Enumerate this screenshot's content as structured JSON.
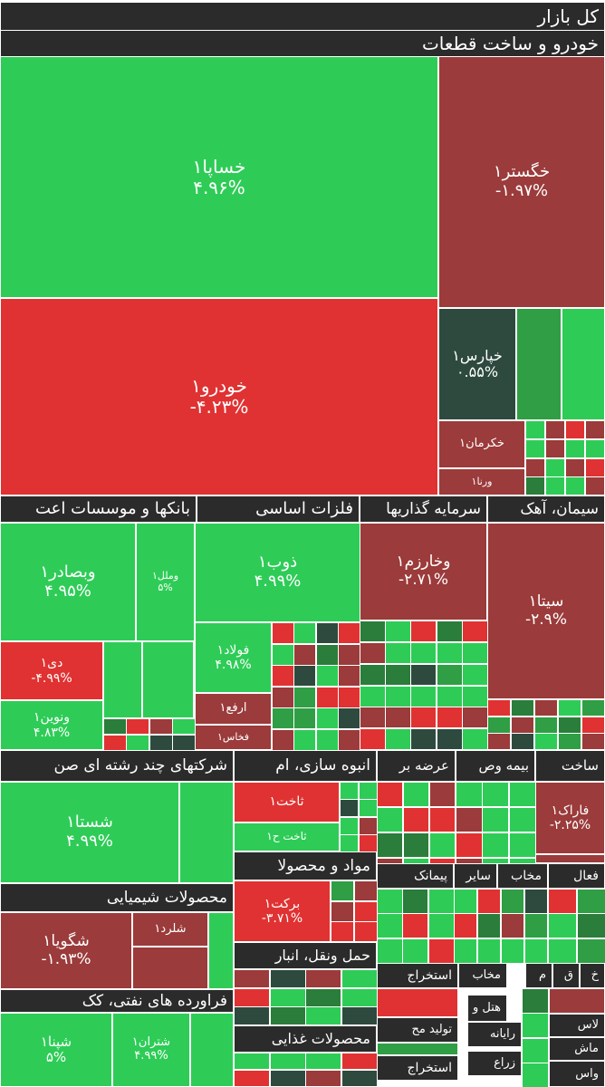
{
  "colors": {
    "up_strong": "#2ecc57",
    "up_mid": "#2f9e44",
    "up_dark": "#2a7d3a",
    "neutral": "#2e4a3f",
    "down_mid": "#9b3b3b",
    "down_strong": "#e03232",
    "header_bg": "#2b2b2b"
  },
  "chart_data": {
    "type": "treemap",
    "title": "کل بازار",
    "sectors": [
      {
        "name": "خودرو و ساخت قطعات",
        "stocks": [
          {
            "name": "خساپا۱",
            "change": "۴.۹۶%",
            "color": "up_strong"
          },
          {
            "name": "خگستر۱",
            "change": "-۱.۹۷%",
            "color": "down_mid"
          },
          {
            "name": "خودرو۱",
            "change": "-۴.۲۳%",
            "color": "down_strong"
          },
          {
            "name": "خپارس۱",
            "change": "۰.۵۵%",
            "color": "neutral"
          },
          {
            "name": "خکرمان۱",
            "change": "",
            "color": "down_mid"
          },
          {
            "name": "ورنا۱",
            "change": "",
            "color": "down_mid"
          }
        ]
      },
      {
        "name": "بانکها و موسسات اعت",
        "stocks": [
          {
            "name": "وبصادر۱",
            "change": "۴.۹۵%",
            "color": "up_strong"
          },
          {
            "name": "وملل۱",
            "change": "۵%",
            "color": "up_strong"
          },
          {
            "name": "دی۱",
            "change": "-۴.۹۹%",
            "color": "down_strong"
          },
          {
            "name": "ونوین۱",
            "change": "۴.۸۳%",
            "color": "up_strong"
          }
        ]
      },
      {
        "name": "فلزات اساسی",
        "stocks": [
          {
            "name": "ذوب۱",
            "change": "۴.۹۹%",
            "color": "up_strong"
          },
          {
            "name": "فولاد۱",
            "change": "۴.۹۸%",
            "color": "up_strong"
          },
          {
            "name": "ارفع۱",
            "change": "",
            "color": "down_mid"
          },
          {
            "name": "فخاس۱",
            "change": "",
            "color": "down_mid"
          }
        ]
      },
      {
        "name": "سرمایه گذاریها",
        "stocks": [
          {
            "name": "وخارزم۱",
            "change": "-۲.۷۱%",
            "color": "down_mid"
          }
        ]
      },
      {
        "name": "سیمان، آهک",
        "stocks": [
          {
            "name": "سیتا۱",
            "change": "-۲.۹%",
            "color": "down_mid"
          }
        ]
      },
      {
        "name": "شرکتهای چند رشته ای صن",
        "stocks": [
          {
            "name": "شستا۱",
            "change": "۴.۹۹%",
            "color": "up_strong"
          }
        ]
      },
      {
        "name": "انبوه سازی، ام",
        "stocks": [
          {
            "name": "ثاخت۱",
            "change": "",
            "color": "down_strong"
          },
          {
            "name": "ثاخت ح۱",
            "change": "",
            "color": "up_strong"
          }
        ]
      },
      {
        "name": "عرضه بر",
        "stocks": []
      },
      {
        "name": "بیمه وص",
        "stocks": []
      },
      {
        "name": "ساخت",
        "stocks": [
          {
            "name": "فاراک۱",
            "change": "-۲.۲۵%",
            "color": "down_mid"
          }
        ]
      },
      {
        "name": "محصولات شیمیایی",
        "stocks": [
          {
            "name": "شگویا۱",
            "change": "-۱.۹۳%",
            "color": "down_mid"
          },
          {
            "name": "شلرد۱",
            "change": "",
            "color": "down_mid"
          }
        ]
      },
      {
        "name": "مواد و محصولا",
        "stocks": [
          {
            "name": "برکت۱",
            "change": "-۳.۷۱%",
            "color": "down_strong"
          }
        ]
      },
      {
        "name": "حمل ونقل، انبار",
        "stocks": []
      },
      {
        "name": "فراورده های نفتی، کک",
        "stocks": [
          {
            "name": "شپنا۱",
            "change": "۵%",
            "color": "up_strong"
          },
          {
            "name": "شتران۱",
            "change": "۴.۹۹%",
            "color": "up_strong"
          }
        ]
      },
      {
        "name": "محصولات غذایی",
        "stocks": []
      },
      {
        "name": "پیمانک",
        "stocks": []
      },
      {
        "name": "سایر",
        "stocks": []
      },
      {
        "name": "مخاب",
        "stocks": []
      },
      {
        "name": "فعال",
        "stocks": []
      },
      {
        "name": "استخراج",
        "stocks": []
      },
      {
        "name": "تولید مح",
        "stocks": []
      },
      {
        "name": "هتل و",
        "stocks": []
      },
      {
        "name": "رایانه",
        "stocks": []
      },
      {
        "name": "زراع",
        "stocks": []
      },
      {
        "name": "م",
        "stocks": []
      },
      {
        "name": "ق",
        "stocks": []
      },
      {
        "name": "خ",
        "stocks": []
      },
      {
        "name": "لاس",
        "stocks": []
      },
      {
        "name": "ماش",
        "stocks": []
      },
      {
        "name": "واس",
        "stocks": []
      }
    ]
  }
}
